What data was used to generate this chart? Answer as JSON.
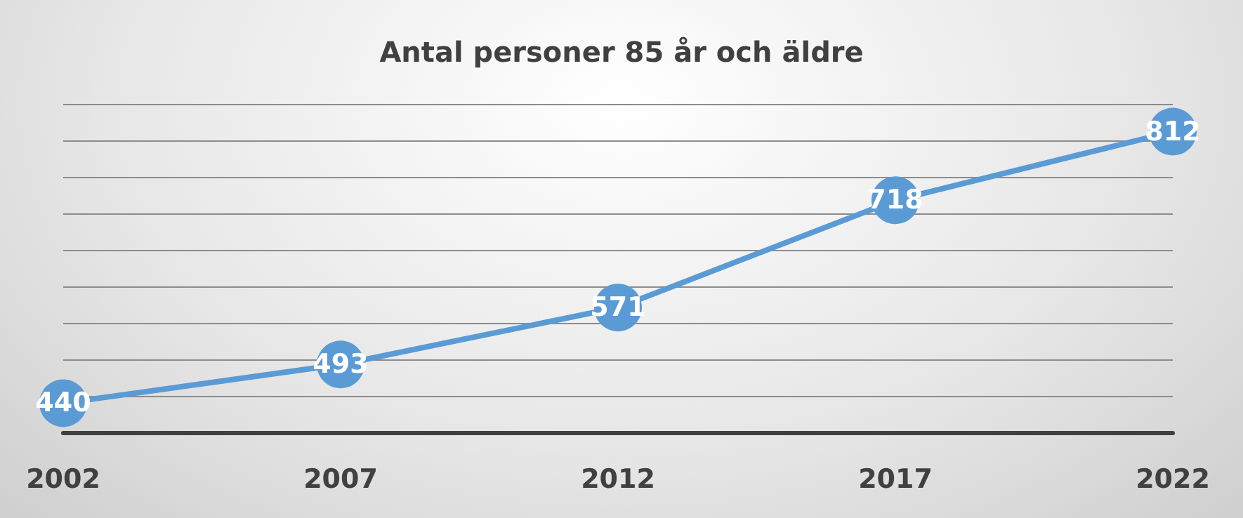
{
  "chart_data": {
    "type": "line",
    "title": "Antal personer 85 år och äldre",
    "categories": [
      "2002",
      "2007",
      "2012",
      "2017",
      "2022"
    ],
    "series": [
      {
        "color": "#5b9bd5",
        "values": [
          440,
          493,
          571,
          718,
          812
        ]
      }
    ],
    "ylim": [
      400,
      850
    ],
    "yticks": [
      {
        "value": 400,
        "label": null
      },
      {
        "value": 450,
        "label": null
      },
      {
        "value": 500,
        "label": null
      },
      {
        "value": 550,
        "label": null
      },
      {
        "value": 600,
        "label": null
      },
      {
        "value": 650,
        "label": null
      },
      {
        "value": 700,
        "label": null
      },
      {
        "value": 750,
        "label": null
      },
      {
        "value": 800,
        "label": null
      },
      {
        "value": 850,
        "label": null
      }
    ],
    "tick_labels": "x",
    "grid": "y",
    "data_labels": true,
    "marker": "circle",
    "line_style": "solid"
  }
}
